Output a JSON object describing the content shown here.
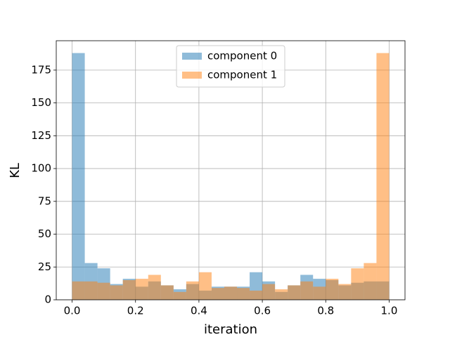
{
  "chart_data": {
    "type": "histogram",
    "xlabel": "iteration",
    "ylabel": "KL",
    "bins": [
      0,
      0.04,
      0.08,
      0.12,
      0.16,
      0.2,
      0.24,
      0.28,
      0.32,
      0.36,
      0.4,
      0.44,
      0.48,
      0.52,
      0.56,
      0.6,
      0.64,
      0.68,
      0.72,
      0.76,
      0.8,
      0.84,
      0.88,
      0.92,
      0.96,
      1
    ],
    "series": [
      {
        "name": "component 0",
        "color": "#1f77b4",
        "values": [
          188,
          28,
          24,
          12,
          16,
          10,
          14,
          11,
          8,
          12,
          7,
          10,
          10,
          10,
          21,
          14,
          6,
          11,
          19,
          16,
          15,
          11,
          13,
          14,
          14
        ]
      },
      {
        "name": "component 1",
        "color": "#ff7f0e",
        "values": [
          14,
          14,
          13,
          11,
          15,
          16,
          19,
          11,
          6,
          14,
          21,
          9,
          10,
          9,
          7,
          12,
          8,
          11,
          14,
          10,
          16,
          12,
          24,
          28,
          188
        ]
      }
    ],
    "alpha": 0.5,
    "xlim": [
      -0.05,
      1.05
    ],
    "ylim": [
      0,
      197.4
    ],
    "xticks": [
      {
        "value": 0,
        "label": "0.0"
      },
      0.2,
      0.4,
      0.6,
      0.8,
      {
        "value": 1,
        "label": "1.0"
      }
    ],
    "yticks": [
      0,
      25,
      50,
      75,
      100,
      125,
      150,
      175
    ],
    "grid": true,
    "legend": "upper center"
  }
}
